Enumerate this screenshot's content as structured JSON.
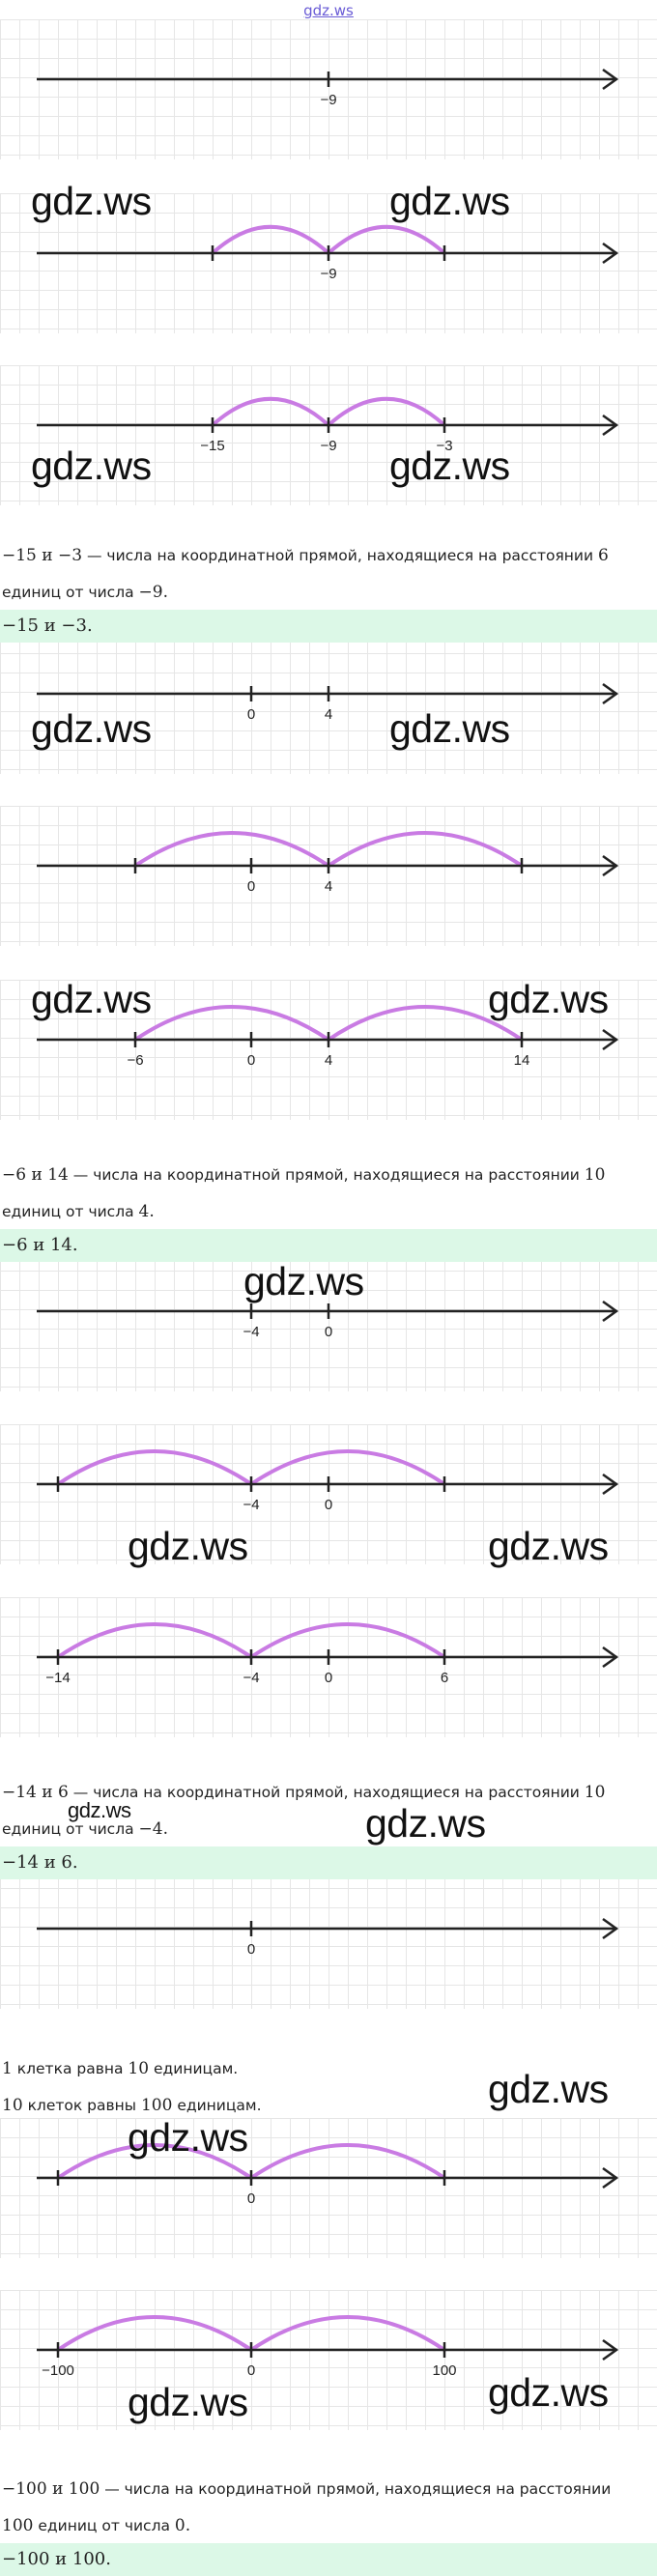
{
  "site_link": "gdz.ws",
  "watermark": "gdz.ws",
  "colors": {
    "arc": "#c97be3",
    "line": "#222222",
    "answer_bg": "#dcf8e7",
    "grid": "#e6e6e6"
  },
  "panels": [
    {
      "ticks": [
        {
          "pos": 340,
          "label": "−9"
        }
      ],
      "arcs": []
    },
    {
      "ticks": [
        {
          "pos": 220,
          "label": ""
        },
        {
          "pos": 340,
          "label": "−9"
        },
        {
          "pos": 460,
          "label": ""
        }
      ],
      "arcs": [
        [
          220,
          340
        ],
        [
          340,
          460
        ]
      ]
    },
    {
      "ticks": [
        {
          "pos": 220,
          "label": "−15"
        },
        {
          "pos": 340,
          "label": "−9"
        },
        {
          "pos": 460,
          "label": "−3"
        }
      ],
      "arcs": [
        [
          220,
          340
        ],
        [
          340,
          460
        ]
      ]
    },
    {
      "ticks": [
        {
          "pos": 260,
          "label": "0"
        },
        {
          "pos": 340,
          "label": "4"
        }
      ],
      "arcs": []
    },
    {
      "ticks": [
        {
          "pos": 140,
          "label": ""
        },
        {
          "pos": 260,
          "label": "0"
        },
        {
          "pos": 340,
          "label": "4"
        },
        {
          "pos": 540,
          "label": ""
        }
      ],
      "arcs": [
        [
          140,
          340
        ],
        [
          340,
          540
        ]
      ]
    },
    {
      "ticks": [
        {
          "pos": 140,
          "label": "−6"
        },
        {
          "pos": 260,
          "label": "0"
        },
        {
          "pos": 340,
          "label": "4"
        },
        {
          "pos": 540,
          "label": "14"
        }
      ],
      "arcs": [
        [
          140,
          340
        ],
        [
          340,
          540
        ]
      ]
    },
    {
      "ticks": [
        {
          "pos": 260,
          "label": "−4"
        },
        {
          "pos": 340,
          "label": "0"
        }
      ],
      "arcs": []
    },
    {
      "ticks": [
        {
          "pos": 60,
          "label": ""
        },
        {
          "pos": 260,
          "label": "−4"
        },
        {
          "pos": 340,
          "label": "0"
        },
        {
          "pos": 460,
          "label": ""
        }
      ],
      "arcs": [
        [
          60,
          260
        ],
        [
          260,
          460
        ]
      ]
    },
    {
      "ticks": [
        {
          "pos": 60,
          "label": "−14"
        },
        {
          "pos": 260,
          "label": "−4"
        },
        {
          "pos": 340,
          "label": "0"
        },
        {
          "pos": 460,
          "label": "6"
        }
      ],
      "arcs": [
        [
          60,
          260
        ],
        [
          260,
          460
        ]
      ]
    },
    {
      "ticks": [
        {
          "pos": 260,
          "label": "0"
        }
      ],
      "arcs": []
    },
    {
      "ticks": [
        {
          "pos": 60,
          "label": ""
        },
        {
          "pos": 260,
          "label": "0"
        },
        {
          "pos": 460,
          "label": ""
        }
      ],
      "arcs": [
        [
          60,
          260
        ],
        [
          260,
          460
        ]
      ]
    },
    {
      "ticks": [
        {
          "pos": 60,
          "label": "−100"
        },
        {
          "pos": 260,
          "label": "0"
        },
        {
          "pos": 460,
          "label": "100"
        }
      ],
      "arcs": [
        [
          60,
          260
        ],
        [
          260,
          460
        ]
      ]
    }
  ],
  "text": {
    "p1_l1_a": "−15 и −3",
    "p1_l1_b": " — числа на координатной прямой, находящиеся на расстоянии ",
    "p1_l1_c": "6",
    "p1_l2_a": "единиц от числа ",
    "p1_l2_b": "−9.",
    "a1": "−15 и −3.",
    "p2_l1_a": "−6 и 14",
    "p2_l1_b": " — числа на координатной прямой, находящиеся на расстоянии ",
    "p2_l1_c": "10",
    "p2_l2_a": "единиц от числа ",
    "p2_l2_b": "4.",
    "a2": "−6 и 14.",
    "p3_l1_a": "−14 и 6",
    "p3_l1_b": " — числа на координатной прямой, находящиеся на расстоянии ",
    "p3_l1_c": "10",
    "p3_l2_a": "единиц от числа ",
    "p3_l2_b": "−4.",
    "a3": "−14 и 6.",
    "n1_a": "1",
    "n1_b": " клетка равна ",
    "n1_c": "10",
    "n1_d": " единицам.",
    "n2_a": "10",
    "n2_b": " клеток равны ",
    "n2_c": "100",
    "n2_d": " единицам.",
    "p4_l1_a": "−100 и 100",
    "p4_l1_b": " — числа на координатной прямой, находящиеся на расстоянии",
    "p4_l2_a": "100",
    "p4_l2_b": " единиц от числа ",
    "p4_l2_c": "0.",
    "a4": "−100 и 100."
  }
}
